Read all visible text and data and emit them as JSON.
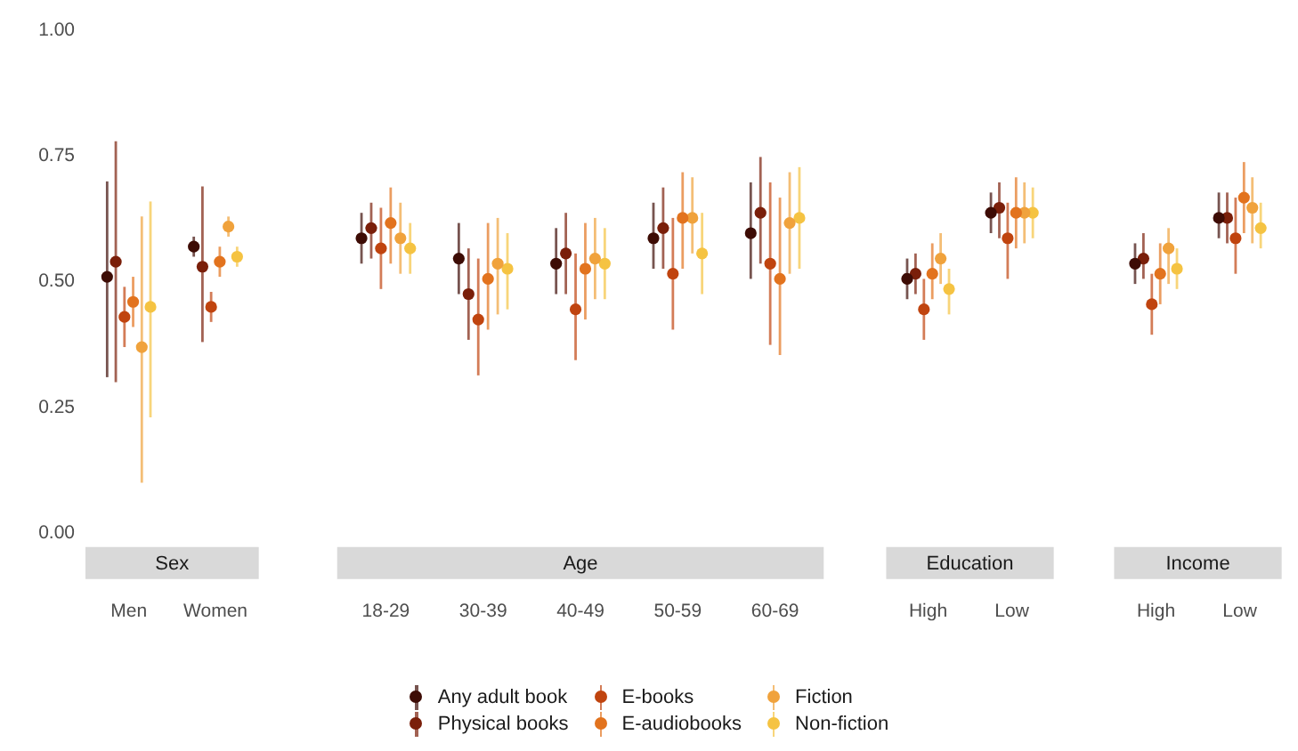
{
  "chart_data": [
    {
      "type": "scatter",
      "title": "Sex",
      "categories": [
        "Men",
        "Women"
      ],
      "ylim": [
        0,
        1
      ],
      "yticks": [
        {
          "value": 0,
          "label": "0.00"
        },
        {
          "value": 0.25,
          "label": "0.25"
        },
        {
          "value": 0.5,
          "label": "0.50"
        },
        {
          "value": 0.75,
          "label": "0.75"
        },
        {
          "value": 1,
          "label": "1.00"
        }
      ],
      "marker": "circle",
      "legend": "bottom",
      "series": [
        {
          "name": "Any adult book",
          "color": "#3d0c05",
          "values": [
            0.51,
            0.57
          ],
          "errors": [
            [
              0.31,
              0.7
            ],
            [
              0.55,
              0.59
            ]
          ]
        },
        {
          "name": "Physical books",
          "color": "#7a1f0a",
          "values": [
            0.54,
            0.53
          ],
          "errors": [
            [
              0.3,
              0.78
            ],
            [
              0.38,
              0.69
            ]
          ]
        },
        {
          "name": "E-books",
          "color": "#c0440f",
          "values": [
            0.43,
            0.45
          ],
          "errors": [
            [
              0.37,
              0.49
            ],
            [
              0.42,
              0.48
            ]
          ]
        },
        {
          "name": "E-audiobooks",
          "color": "#e2731e",
          "values": [
            0.46,
            0.54
          ],
          "errors": [
            [
              0.41,
              0.51
            ],
            [
              0.51,
              0.57
            ]
          ]
        },
        {
          "name": "Fiction",
          "color": "#f0a23c",
          "values": [
            0.37,
            0.61
          ],
          "errors": [
            [
              0.1,
              0.63
            ],
            [
              0.59,
              0.63
            ]
          ]
        },
        {
          "name": "Non-fiction",
          "color": "#f5c342",
          "values": [
            0.45,
            0.55
          ],
          "errors": [
            [
              0.23,
              0.66
            ],
            [
              0.53,
              0.57
            ]
          ]
        }
      ]
    },
    {
      "type": "scatter",
      "title": "Age",
      "categories": [
        "18-29",
        "30-39",
        "40-49",
        "50-59",
        "60-69"
      ],
      "ylim": [
        0,
        1
      ],
      "tick_labels": "x",
      "marker": "circle",
      "series": [
        {
          "color": "#3d0c05",
          "values": [
            0.58,
            0.54,
            0.53,
            0.58,
            0.59
          ],
          "errors": [
            [
              0.53,
              0.63
            ],
            [
              0.47,
              0.61
            ],
            [
              0.47,
              0.6
            ],
            [
              0.52,
              0.65
            ],
            [
              0.5,
              0.69
            ]
          ]
        },
        {
          "color": "#7a1f0a",
          "values": [
            0.6,
            0.47,
            0.55,
            0.6,
            0.63
          ],
          "errors": [
            [
              0.54,
              0.65
            ],
            [
              0.38,
              0.56
            ],
            [
              0.47,
              0.63
            ],
            [
              0.52,
              0.68
            ],
            [
              0.53,
              0.74
            ]
          ]
        },
        {
          "color": "#c0440f",
          "values": [
            0.56,
            0.42,
            0.44,
            0.51,
            0.53
          ],
          "errors": [
            [
              0.48,
              0.64
            ],
            [
              0.31,
              0.54
            ],
            [
              0.34,
              0.55
            ],
            [
              0.4,
              0.62
            ],
            [
              0.37,
              0.69
            ]
          ]
        },
        {
          "color": "#e2731e",
          "values": [
            0.61,
            0.5,
            0.52,
            0.62,
            0.5
          ],
          "errors": [
            [
              0.53,
              0.68
            ],
            [
              0.4,
              0.61
            ],
            [
              0.42,
              0.61
            ],
            [
              0.52,
              0.71
            ],
            [
              0.35,
              0.66
            ]
          ]
        },
        {
          "color": "#f0a23c",
          "values": [
            0.58,
            0.53,
            0.54,
            0.62,
            0.61
          ],
          "errors": [
            [
              0.51,
              0.65
            ],
            [
              0.43,
              0.62
            ],
            [
              0.46,
              0.62
            ],
            [
              0.55,
              0.7
            ],
            [
              0.51,
              0.71
            ]
          ]
        },
        {
          "color": "#f5c342",
          "values": [
            0.56,
            0.52,
            0.53,
            0.55,
            0.62
          ],
          "errors": [
            [
              0.51,
              0.61
            ],
            [
              0.44,
              0.59
            ],
            [
              0.46,
              0.6
            ],
            [
              0.47,
              0.63
            ],
            [
              0.52,
              0.72
            ]
          ]
        }
      ]
    },
    {
      "type": "scatter",
      "title": "Education",
      "categories": [
        "High",
        "Low"
      ],
      "ylim": [
        0,
        1
      ],
      "tick_labels": "x",
      "marker": "circle",
      "series": [
        {
          "color": "#3d0c05",
          "values": [
            0.5,
            0.63
          ],
          "errors": [
            [
              0.46,
              0.54
            ],
            [
              0.59,
              0.67
            ]
          ]
        },
        {
          "color": "#7a1f0a",
          "values": [
            0.51,
            0.64
          ],
          "errors": [
            [
              0.47,
              0.55
            ],
            [
              0.58,
              0.69
            ]
          ]
        },
        {
          "color": "#c0440f",
          "values": [
            0.44,
            0.58
          ],
          "errors": [
            [
              0.38,
              0.5
            ],
            [
              0.5,
              0.65
            ]
          ]
        },
        {
          "color": "#e2731e",
          "values": [
            0.51,
            0.63
          ],
          "errors": [
            [
              0.46,
              0.57
            ],
            [
              0.56,
              0.7
            ]
          ]
        },
        {
          "color": "#f0a23c",
          "values": [
            0.54,
            0.63
          ],
          "errors": [
            [
              0.49,
              0.59
            ],
            [
              0.57,
              0.69
            ]
          ]
        },
        {
          "color": "#f5c342",
          "values": [
            0.48,
            0.63
          ],
          "errors": [
            [
              0.43,
              0.52
            ],
            [
              0.58,
              0.68
            ]
          ]
        }
      ]
    },
    {
      "type": "scatter",
      "title": "Income",
      "categories": [
        "High",
        "Low"
      ],
      "ylim": [
        0,
        1
      ],
      "tick_labels": "x",
      "marker": "circle",
      "series": [
        {
          "color": "#3d0c05",
          "values": [
            0.53,
            0.62
          ],
          "errors": [
            [
              0.49,
              0.57
            ],
            [
              0.58,
              0.67
            ]
          ]
        },
        {
          "color": "#7a1f0a",
          "values": [
            0.54,
            0.62
          ],
          "errors": [
            [
              0.5,
              0.59
            ],
            [
              0.57,
              0.67
            ]
          ]
        },
        {
          "color": "#c0440f",
          "values": [
            0.45,
            0.58
          ],
          "errors": [
            [
              0.39,
              0.51
            ],
            [
              0.51,
              0.66
            ]
          ]
        },
        {
          "color": "#e2731e",
          "values": [
            0.51,
            0.66
          ],
          "errors": [
            [
              0.45,
              0.57
            ],
            [
              0.59,
              0.73
            ]
          ]
        },
        {
          "color": "#f0a23c",
          "values": [
            0.56,
            0.64
          ],
          "errors": [
            [
              0.49,
              0.6
            ],
            [
              0.57,
              0.7
            ]
          ]
        },
        {
          "color": "#f5c342",
          "values": [
            0.52,
            0.6
          ],
          "errors": [
            [
              0.48,
              0.56
            ],
            [
              0.56,
              0.65
            ]
          ]
        }
      ]
    }
  ]
}
